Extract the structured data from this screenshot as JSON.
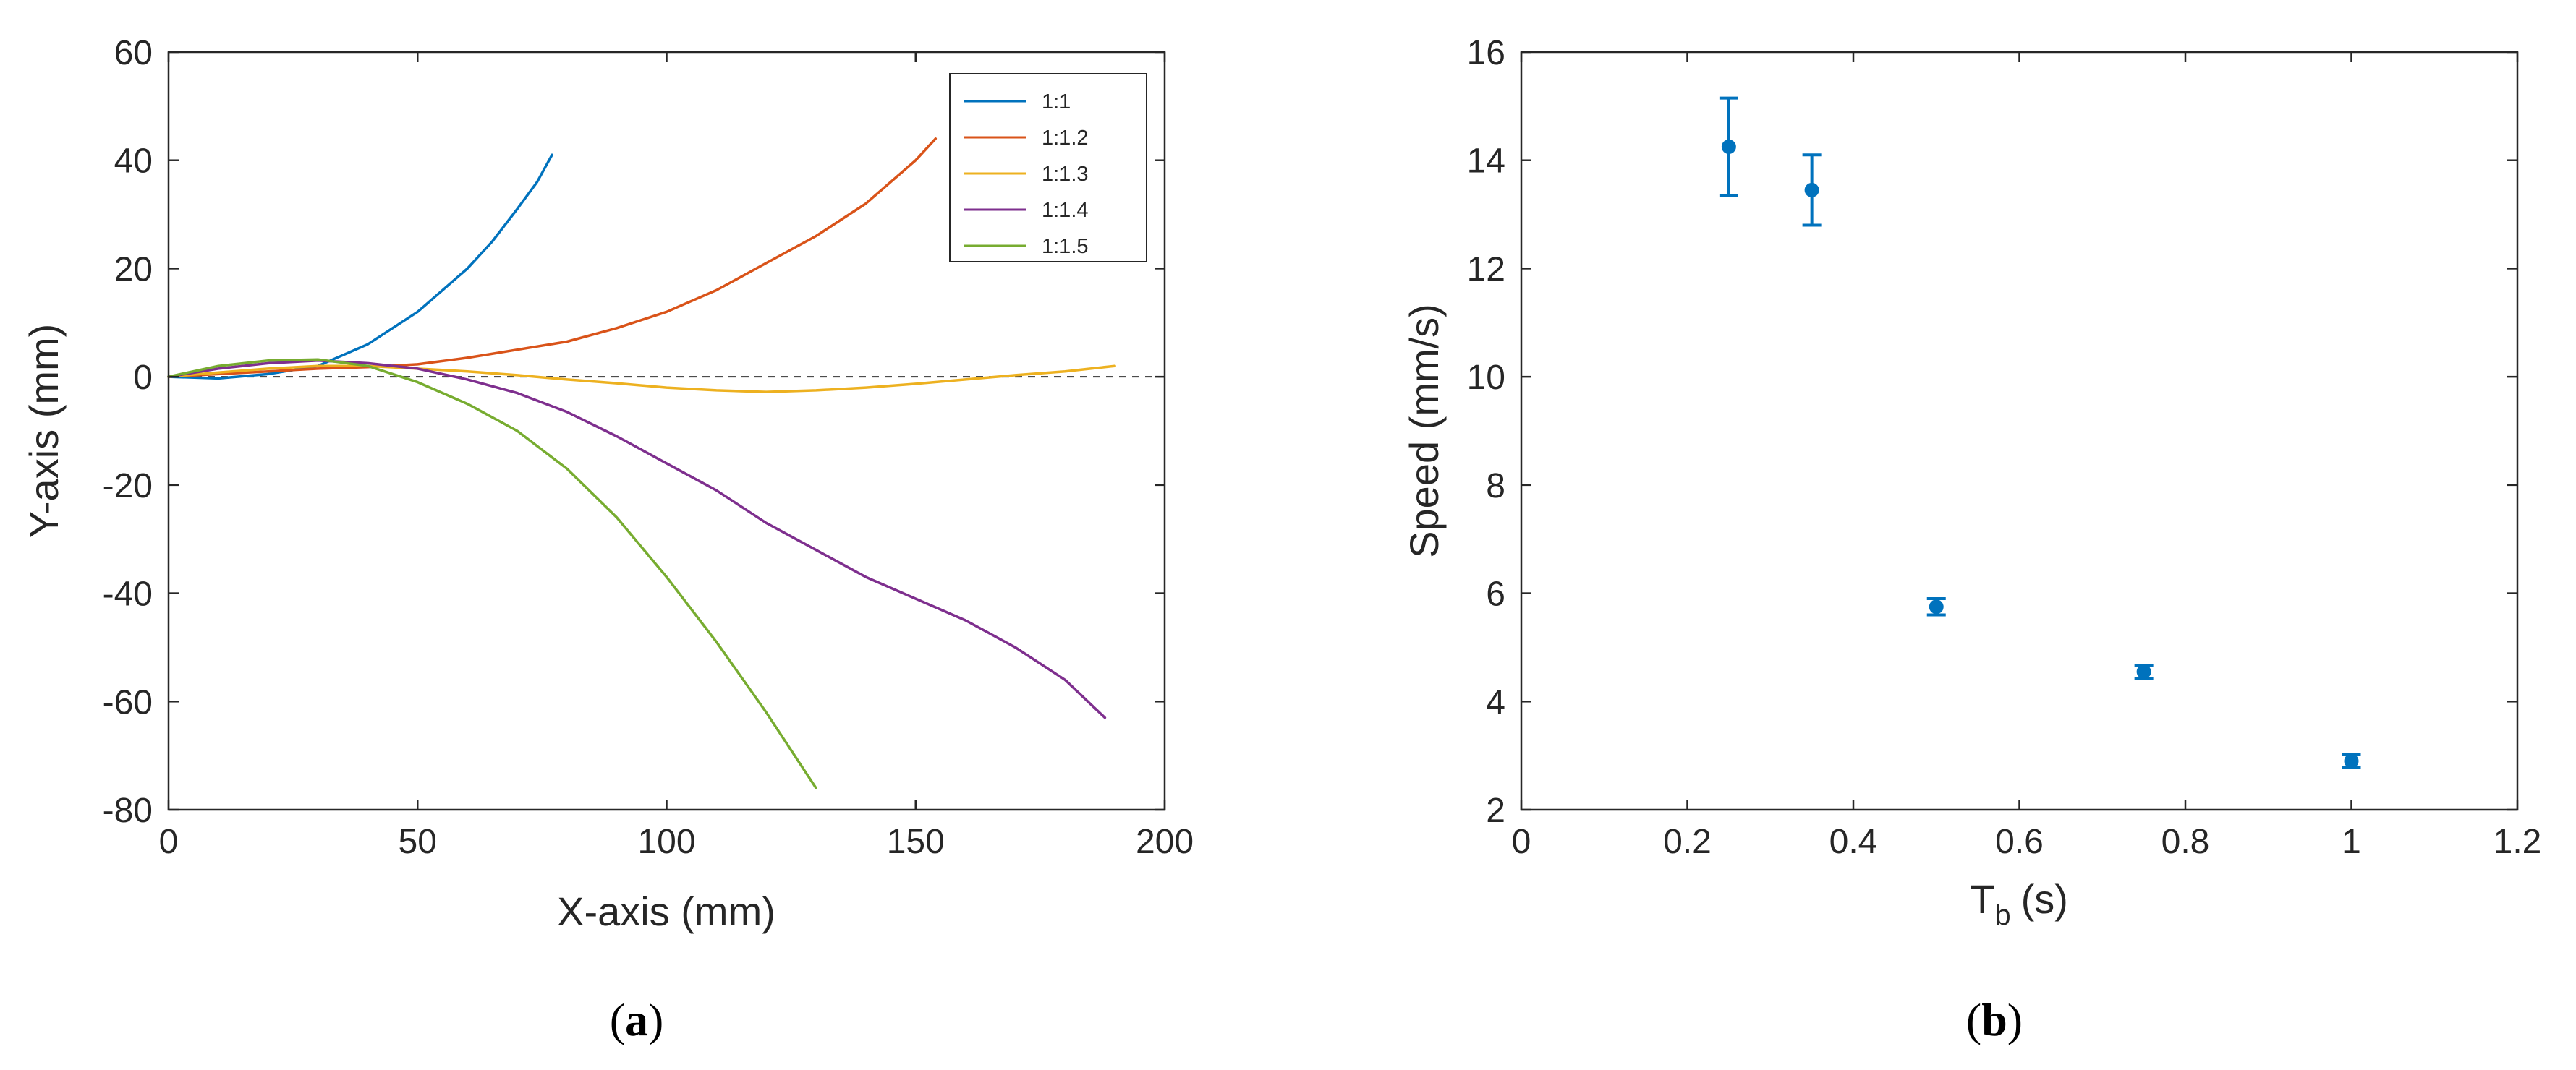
{
  "chart_data": [
    {
      "type": "line",
      "panel_label": "a",
      "xlabel": "X-axis (mm)",
      "ylabel": "Y-axis (mm)",
      "xlim": [
        0,
        200
      ],
      "ylim": [
        -80,
        60
      ],
      "xticks": [
        0,
        50,
        100,
        150,
        200
      ],
      "yticks": [
        -80,
        -60,
        -40,
        -20,
        0,
        20,
        40,
        60
      ],
      "xtick_labels": [
        "0",
        "50",
        "100",
        "150",
        "200"
      ],
      "ytick_labels": [
        "-80",
        "-60",
        "-40",
        "-20",
        "0",
        "20",
        "40",
        "60"
      ],
      "grid": false,
      "reference_line": {
        "y": 0,
        "style": "dashed",
        "color": "#333333"
      },
      "legend_position": "top-right",
      "series": [
        {
          "name": "1:1",
          "color": "#0072BD",
          "x": [
            0,
            10,
            20,
            30,
            40,
            50,
            55,
            60,
            65,
            70,
            74,
            77
          ],
          "y": [
            0,
            -0.3,
            0.5,
            2,
            6,
            12,
            16,
            20,
            25,
            31,
            36,
            41
          ]
        },
        {
          "name": "1:1.2",
          "color": "#D95319",
          "x": [
            0,
            10,
            20,
            30,
            40,
            50,
            60,
            70,
            80,
            90,
            100,
            110,
            120,
            130,
            140,
            145,
            150,
            154
          ],
          "y": [
            0,
            0.5,
            1,
            1.5,
            1.8,
            2.3,
            3.5,
            5,
            6.5,
            9,
            12,
            16,
            21,
            26,
            32,
            36,
            40,
            44
          ]
        },
        {
          "name": "1:1.3",
          "color": "#EDB120",
          "x": [
            0,
            10,
            20,
            30,
            40,
            50,
            60,
            70,
            80,
            90,
            100,
            110,
            120,
            130,
            140,
            150,
            160,
            170,
            180,
            190
          ],
          "y": [
            0,
            0.8,
            1.5,
            2,
            2,
            1.5,
            1,
            0.3,
            -0.5,
            -1.2,
            -2,
            -2.5,
            -2.8,
            -2.5,
            -2,
            -1.3,
            -0.5,
            0.3,
            1,
            2
          ]
        },
        {
          "name": "1:1.4",
          "color": "#7E2F8E",
          "x": [
            0,
            10,
            20,
            30,
            40,
            50,
            60,
            70,
            80,
            90,
            100,
            110,
            120,
            130,
            140,
            150,
            160,
            170,
            180,
            188
          ],
          "y": [
            0,
            1.5,
            2.5,
            3,
            2.5,
            1.5,
            -0.5,
            -3,
            -6.5,
            -11,
            -16,
            -21,
            -27,
            -32,
            -37,
            -41,
            -45,
            -50,
            -56,
            -63
          ]
        },
        {
          "name": "1:1.5",
          "color": "#77AC30",
          "x": [
            0,
            10,
            20,
            30,
            40,
            50,
            60,
            70,
            80,
            90,
            100,
            110,
            120,
            130
          ],
          "y": [
            0,
            2,
            3,
            3.2,
            2,
            -1,
            -5,
            -10,
            -17,
            -26,
            -37,
            -49,
            -62,
            -76
          ]
        }
      ]
    },
    {
      "type": "scatter",
      "panel_label": "b",
      "xlabel": "T",
      "xlabel_subscript": "b",
      "xlabel_unit": "(s)",
      "ylabel": "Speed (mm/s)",
      "xlim": [
        0,
        1.2
      ],
      "ylim": [
        2,
        16
      ],
      "xticks": [
        0,
        0.2,
        0.4,
        0.6,
        0.8,
        1,
        1.2
      ],
      "yticks": [
        2,
        4,
        6,
        8,
        10,
        12,
        14,
        16
      ],
      "xtick_labels": [
        "0",
        "0.2",
        "0.4",
        "0.6",
        "0.8",
        "1",
        "1.2"
      ],
      "ytick_labels": [
        "2",
        "4",
        "6",
        "8",
        "10",
        "12",
        "14",
        "16"
      ],
      "grid": false,
      "color": "#0072BD",
      "x": [
        0.25,
        0.35,
        0.5,
        0.75,
        1.0
      ],
      "y": [
        14.25,
        13.45,
        5.75,
        4.55,
        2.9
      ],
      "error": [
        0.9,
        0.65,
        0.15,
        0.12,
        0.12
      ]
    }
  ]
}
